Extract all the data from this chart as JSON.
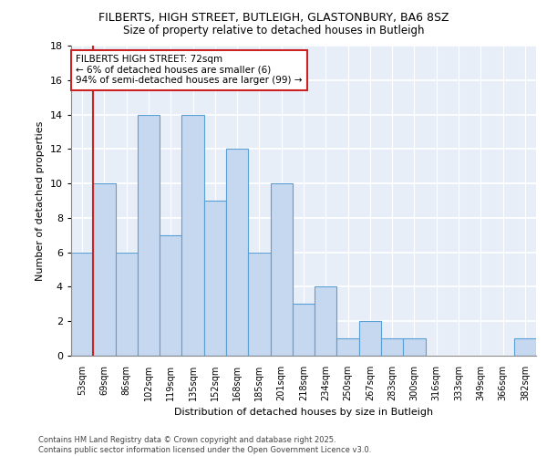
{
  "title": "FILBERTS, HIGH STREET, BUTLEIGH, GLASTONBURY, BA6 8SZ",
  "subtitle": "Size of property relative to detached houses in Butleigh",
  "xlabel": "Distribution of detached houses by size in Butleigh",
  "ylabel": "Number of detached properties",
  "annotation_title": "FILBERTS HIGH STREET: 72sqm",
  "annotation_line2": "← 6% of detached houses are smaller (6)",
  "annotation_line3": "94% of semi-detached houses are larger (99) →",
  "categories": [
    "53sqm",
    "69sqm",
    "86sqm",
    "102sqm",
    "119sqm",
    "135sqm",
    "152sqm",
    "168sqm",
    "185sqm",
    "201sqm",
    "218sqm",
    "234sqm",
    "250sqm",
    "267sqm",
    "283sqm",
    "300sqm",
    "316sqm",
    "333sqm",
    "349sqm",
    "366sqm",
    "382sqm"
  ],
  "values": [
    6,
    10,
    6,
    14,
    7,
    14,
    9,
    12,
    6,
    10,
    3,
    4,
    1,
    2,
    1,
    1,
    0,
    0,
    0,
    0,
    1
  ],
  "red_line_index": 1,
  "bar_color": "#c5d8f0",
  "bar_edge_color": "#5a9fd4",
  "annotation_bar_index": 1,
  "ylim": [
    0,
    18
  ],
  "yticks": [
    0,
    2,
    4,
    6,
    8,
    10,
    12,
    14,
    16,
    18
  ],
  "footer": "Contains HM Land Registry data © Crown copyright and database right 2025.\nContains public sector information licensed under the Open Government Licence v3.0.",
  "background_color": "#e8eef8"
}
